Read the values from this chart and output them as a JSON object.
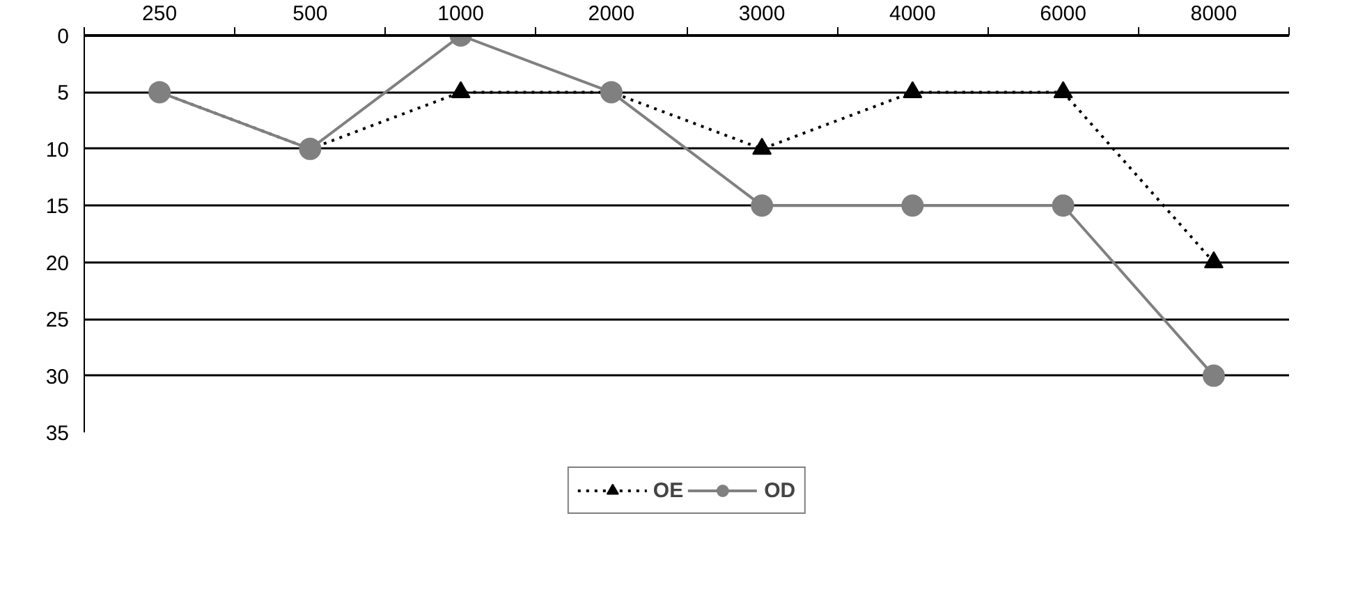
{
  "chart_data": {
    "type": "line",
    "categories": [
      "250",
      "500",
      "1000",
      "2000",
      "3000",
      "4000",
      "6000",
      "8000"
    ],
    "series": [
      {
        "name": "OE",
        "color": "#000000",
        "values": [
          5,
          10,
          5,
          5,
          10,
          5,
          5,
          20
        ],
        "marker": "triangle",
        "line_style": "dotted"
      },
      {
        "name": "OD",
        "color": "#808080",
        "values": [
          5,
          10,
          0,
          5,
          15,
          15,
          15,
          30
        ],
        "marker": "circle",
        "line_style": "solid"
      }
    ],
    "ylim": [
      35,
      0
    ],
    "yticks": [
      0,
      5,
      10,
      15,
      20,
      25,
      30,
      35
    ],
    "grid": "y",
    "legend": "bottom"
  }
}
